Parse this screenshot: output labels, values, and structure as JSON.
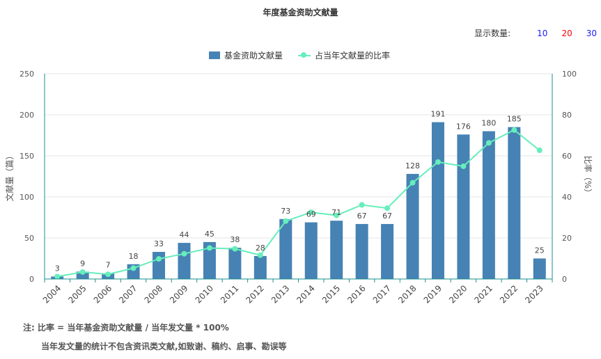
{
  "chart_data": {
    "type": "bar",
    "title": "年度基金资助文献量",
    "categories": [
      "2004",
      "2005",
      "2006",
      "2007",
      "2008",
      "2009",
      "2010",
      "2011",
      "2012",
      "2013",
      "2014",
      "2015",
      "2016",
      "2017",
      "2018",
      "2019",
      "2020",
      "2021",
      "2022",
      "2023"
    ],
    "series": [
      {
        "name": "基金资助文献量",
        "type": "bar",
        "axis": "left",
        "color": "#4682b4",
        "values": [
          3,
          9,
          7,
          18,
          33,
          44,
          45,
          38,
          28,
          73,
          69,
          71,
          67,
          67,
          128,
          191,
          176,
          180,
          185,
          25
        ]
      },
      {
        "name": "占当年文献量的比率",
        "type": "line",
        "axis": "right",
        "color": "#66eebb",
        "values": [
          1.2,
          3.4,
          2.3,
          5.3,
          9.8,
          12.3,
          15.1,
          14.7,
          11.6,
          28.2,
          32.5,
          31.0,
          36.1,
          34.5,
          46.9,
          57.0,
          54.9,
          66.3,
          72.6,
          62.7
        ]
      }
    ],
    "ylabel": "文献量（篇）",
    "ylabel_right": "比率（%）",
    "ylim": [
      0,
      250
    ],
    "yticks": [
      "0",
      "50",
      "100",
      "150",
      "200",
      "250"
    ],
    "ylim_right": [
      0,
      100
    ],
    "yticks_right": [
      "0",
      "20",
      "40",
      "60",
      "80",
      "100"
    ],
    "grid": true,
    "legend_position": "top-center"
  },
  "display_count": {
    "label": "显示数量:",
    "options": [
      {
        "text": "10",
        "color": "#1a1aff"
      },
      {
        "text": "20",
        "color": "#ff0000"
      },
      {
        "text": "30",
        "color": "#1a1aff"
      }
    ]
  },
  "notes": {
    "line1": "注:   比率 = 当年基金资助文献量 / 当年发文量 * 100%",
    "line2": "当年发文量的统计不包含资讯类文献,如致谢、稿约、启事、勘误等"
  },
  "colors": {
    "bar": "#4682b4",
    "line": "#66eebb",
    "axis": "#1a8f8f",
    "grid": "#e6e6e6"
  }
}
